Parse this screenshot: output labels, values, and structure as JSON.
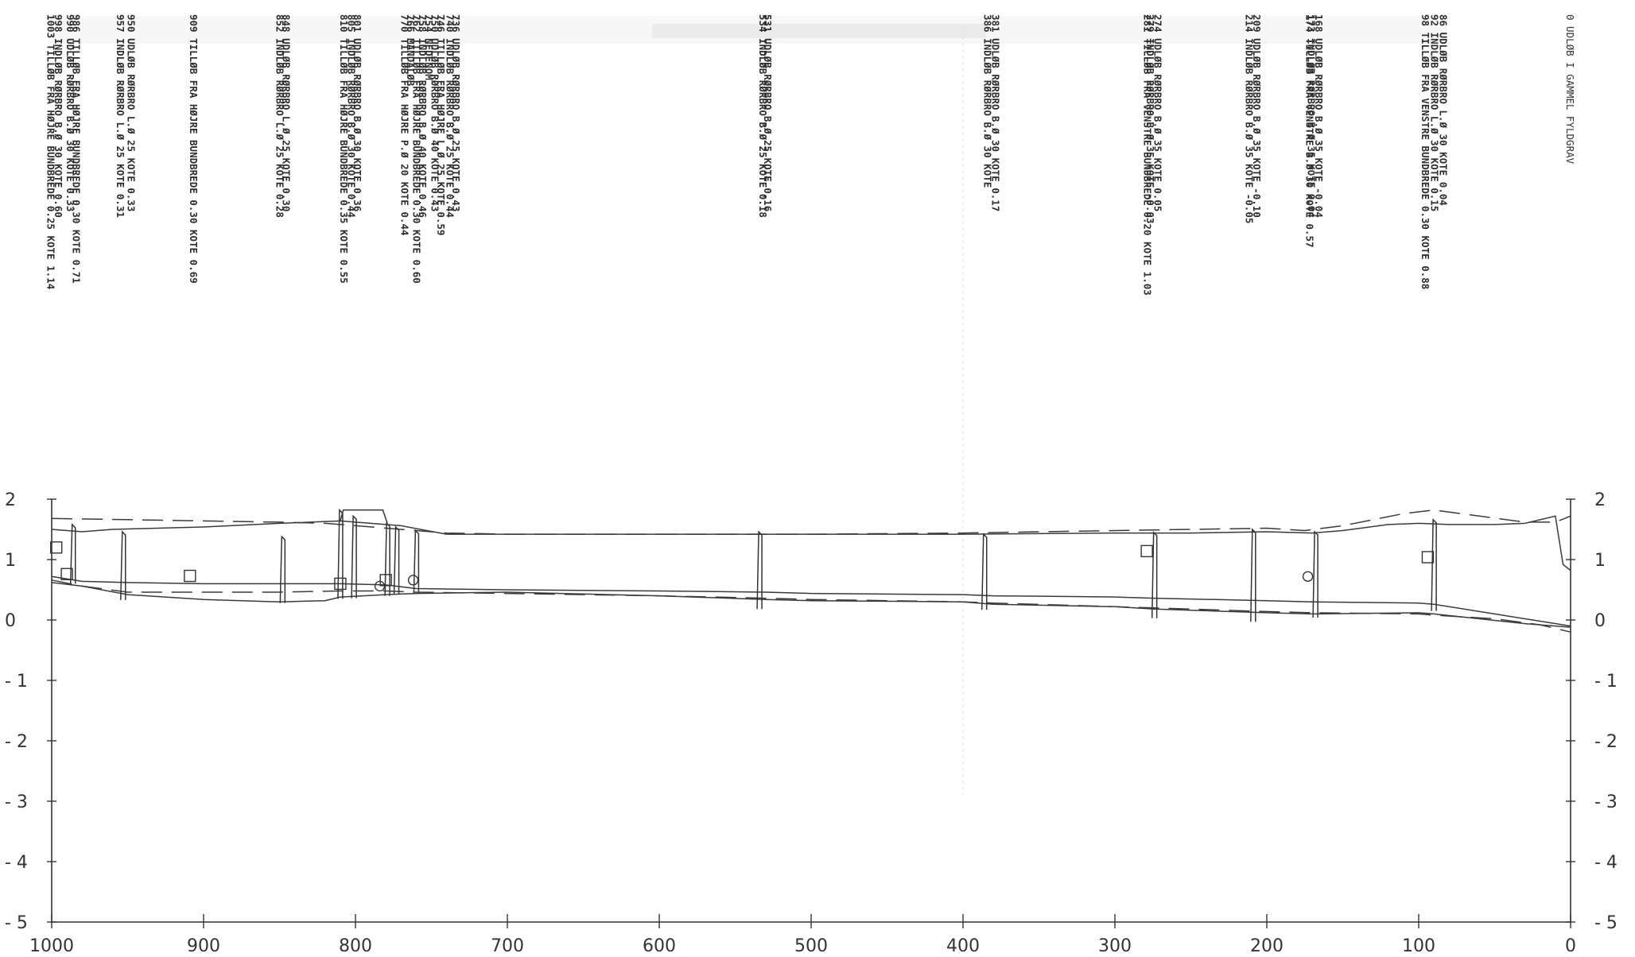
{
  "chart_data": {
    "type": "line",
    "x_ticks": [
      1000,
      900,
      800,
      700,
      600,
      500,
      400,
      300,
      200,
      100,
      0
    ],
    "y_ticks": [
      2,
      1,
      0,
      -1,
      -2,
      -3,
      -4,
      -5
    ],
    "xlim": [
      1000,
      0
    ],
    "ylim": [
      -5,
      2
    ],
    "series": [
      {
        "style": "dashed",
        "points": [
          [
            1000,
            1.68
          ],
          [
            950,
            1.66
          ],
          [
            900,
            1.64
          ],
          [
            850,
            1.62
          ],
          [
            820,
            1.6
          ],
          [
            800,
            1.56
          ],
          [
            760,
            1.48
          ],
          [
            740,
            1.44
          ],
          [
            700,
            1.42
          ],
          [
            600,
            1.42
          ],
          [
            500,
            1.42
          ],
          [
            400,
            1.44
          ],
          [
            300,
            1.48
          ],
          [
            250,
            1.5
          ],
          [
            200,
            1.52
          ],
          [
            175,
            1.48
          ],
          [
            150,
            1.56
          ],
          [
            110,
            1.76
          ],
          [
            90,
            1.82
          ],
          [
            60,
            1.72
          ],
          [
            30,
            1.62
          ],
          [
            10,
            1.62
          ],
          [
            0,
            1.72
          ]
        ]
      },
      {
        "style": "solid",
        "points": [
          [
            1000,
            1.5
          ],
          [
            980,
            1.46
          ],
          [
            960,
            1.5
          ],
          [
            900,
            1.54
          ],
          [
            850,
            1.6
          ],
          [
            810,
            1.64
          ],
          [
            790,
            1.6
          ],
          [
            770,
            1.56
          ],
          [
            740,
            1.42
          ],
          [
            700,
            1.42
          ],
          [
            600,
            1.42
          ],
          [
            500,
            1.42
          ],
          [
            400,
            1.42
          ],
          [
            300,
            1.44
          ],
          [
            250,
            1.44
          ],
          [
            200,
            1.46
          ],
          [
            170,
            1.44
          ],
          [
            150,
            1.48
          ],
          [
            120,
            1.58
          ],
          [
            100,
            1.6
          ],
          [
            80,
            1.58
          ],
          [
            50,
            1.58
          ],
          [
            30,
            1.6
          ],
          [
            10,
            1.72
          ],
          [
            5,
            0.92
          ],
          [
            0,
            0.82
          ]
        ]
      },
      {
        "style": "solid",
        "points": [
          [
            1000,
            0.72
          ],
          [
            980,
            0.64
          ],
          [
            950,
            0.62
          ],
          [
            900,
            0.6
          ],
          [
            850,
            0.6
          ],
          [
            810,
            0.6
          ],
          [
            780,
            0.58
          ],
          [
            760,
            0.52
          ],
          [
            700,
            0.5
          ],
          [
            600,
            0.48
          ],
          [
            530,
            0.46
          ],
          [
            500,
            0.44
          ],
          [
            400,
            0.42
          ],
          [
            380,
            0.4
          ],
          [
            300,
            0.38
          ],
          [
            274,
            0.36
          ],
          [
            200,
            0.32
          ],
          [
            170,
            0.3
          ],
          [
            100,
            0.28
          ],
          [
            90,
            0.26
          ],
          [
            50,
            0.1
          ],
          [
            20,
            -0.02
          ],
          [
            0,
            -0.1
          ]
        ]
      },
      {
        "style": "dashed",
        "points": [
          [
            1000,
            0.66
          ],
          [
            980,
            0.56
          ],
          [
            950,
            0.46
          ],
          [
            900,
            0.46
          ],
          [
            850,
            0.46
          ],
          [
            810,
            0.48
          ],
          [
            780,
            0.48
          ],
          [
            760,
            0.46
          ],
          [
            700,
            0.44
          ],
          [
            600,
            0.4
          ],
          [
            530,
            0.36
          ],
          [
            500,
            0.34
          ],
          [
            400,
            0.3
          ],
          [
            380,
            0.28
          ],
          [
            300,
            0.22
          ],
          [
            274,
            0.2
          ],
          [
            200,
            0.14
          ],
          [
            170,
            0.12
          ],
          [
            100,
            0.1
          ],
          [
            90,
            0.08
          ],
          [
            50,
            0.02
          ],
          [
            20,
            -0.08
          ],
          [
            0,
            -0.2
          ]
        ]
      },
      {
        "style": "solid",
        "points": [
          [
            1000,
            0.62
          ],
          [
            980,
            0.56
          ],
          [
            950,
            0.42
          ],
          [
            900,
            0.34
          ],
          [
            850,
            0.3
          ],
          [
            820,
            0.32
          ],
          [
            810,
            0.38
          ],
          [
            780,
            0.42
          ],
          [
            760,
            0.44
          ],
          [
            700,
            0.46
          ],
          [
            600,
            0.4
          ],
          [
            530,
            0.34
          ],
          [
            500,
            0.32
          ],
          [
            400,
            0.3
          ],
          [
            380,
            0.26
          ],
          [
            300,
            0.22
          ],
          [
            274,
            0.18
          ],
          [
            200,
            0.12
          ],
          [
            170,
            0.1
          ],
          [
            100,
            0.12
          ],
          [
            90,
            0.1
          ],
          [
            60,
            0.02
          ],
          [
            30,
            -0.06
          ],
          [
            0,
            -0.12
          ]
        ]
      }
    ],
    "structures": [
      {
        "x": 986,
        "bottom": 0.6,
        "top": 1.58
      },
      {
        "x": 953,
        "bottom": 0.33,
        "top": 1.46
      },
      {
        "x": 848,
        "bottom": 0.28,
        "top": 1.38
      },
      {
        "x": 810,
        "bottom": 0.35,
        "top": 1.82
      },
      {
        "x": 801,
        "bottom": 0.36,
        "top": 1.72
      },
      {
        "x": 779,
        "bottom": 0.4,
        "top": 1.6
      },
      {
        "x": 773,
        "bottom": 0.43,
        "top": 1.54
      },
      {
        "x": 760,
        "bottom": 0.44,
        "top": 1.48
      },
      {
        "x": 534,
        "bottom": 0.18,
        "top": 1.46
      },
      {
        "x": 386,
        "bottom": 0.17,
        "top": 1.42
      },
      {
        "x": 274,
        "bottom": 0.03,
        "top": 1.45
      },
      {
        "x": 209,
        "bottom": -0.03,
        "top": 1.5
      },
      {
        "x": 168,
        "bottom": 0.04,
        "top": 1.46
      },
      {
        "x": 90,
        "bottom": 0.15,
        "top": 1.66
      }
    ],
    "markers": [
      {
        "shape": "square",
        "x": 997,
        "y": 1.2
      },
      {
        "shape": "square",
        "x": 990,
        "y": 0.76
      },
      {
        "shape": "square",
        "x": 909,
        "y": 0.73
      },
      {
        "shape": "square",
        "x": 810,
        "y": 0.6
      },
      {
        "shape": "square",
        "x": 780,
        "y": 0.66
      },
      {
        "shape": "circle",
        "x": 784,
        "y": 0.56
      },
      {
        "shape": "circle",
        "x": 762,
        "y": 0.66
      },
      {
        "shape": "square",
        "x": 279,
        "y": 1.14
      },
      {
        "shape": "circle",
        "x": 173,
        "y": 0.72
      },
      {
        "shape": "square",
        "x": 94,
        "y": 1.04
      }
    ]
  },
  "header": "0 UDLØB I GAMMEL FYLDGRAV",
  "annotations": [
    {
      "x": 86,
      "text": "86 UDLØB RØRBRO L.Ø 30 KOTE 0.04"
    },
    {
      "x": 92,
      "text": "92 INDLØB RØRBRO L.Ø 30 KOTE 0.15"
    },
    {
      "x": 98,
      "text": "98 TILLØB FRA VENSTRE BUNDBREDE 0.30 KOTE 0.88"
    },
    {
      "x": 168,
      "text": "168 UDLØB RØRBRO B.Ø 35 KOTE -0.04"
    },
    {
      "x": 173,
      "text": "173 INDLØB RØRBRO B.Ø 35 KOTE 0.04"
    },
    {
      "x": 174,
      "text": "174 TILLØB FRA VENSTRE B.Ø 30 KOTE 0.57"
    },
    {
      "x": 209,
      "text": "209 UDLØB RØRBRO B.Ø 35 KOTE -0.10"
    },
    {
      "x": 214,
      "text": "214 INDLØB RØRBRO B.Ø 35 KOTE -0.05"
    },
    {
      "x": 274,
      "text": "274 UDLØB RØRBRO B.Ø 35 KOTE 0.05"
    },
    {
      "x": 279,
      "text": "279 INDLØB RØRBRO B.Ø 35 KOTE -0.03"
    },
    {
      "x": 281,
      "text": "281 TILLØB FRA VENSTRE BUNDBREDE 0.20 KOTE 1.03"
    },
    {
      "x": 381,
      "text": "381 UDLØB RØRBRO B.Ø 30 KOTE 0.17"
    },
    {
      "x": 386,
      "text": "386 INDLØB RØRBRO B.Ø 30 KOTE"
    },
    {
      "x": 531,
      "text": "531 UDLØB RØRBRO B.Ø 25 KOTE 0.16"
    },
    {
      "x": 534,
      "text": "534 INDLØB RØRBRO B.Ø 25 KOTE 0.18"
    },
    {
      "x": 736,
      "text": "736 UDLØB RØRBRO B.Ø 25 KOTE 0.43"
    },
    {
      "x": 740,
      "text": "740 INDLØB RØRBRO B.Ø 25 KOTE 0.44"
    },
    {
      "x": 746,
      "text": "746 TILLØB FRA HØJRE L.Ø 25 KOTE 0.59"
    },
    {
      "x": 750,
      "text": "750 UDLØB RØRBRO B.Ø 40 KOTE 0.43"
    },
    {
      "x": 754,
      "text": "754 NEDENOM"
    },
    {
      "x": 758,
      "text": "758 INDLØB RØRBRO B.Ø 40 KOTE 0.46"
    },
    {
      "x": 762,
      "text": "762 TILLØB FRA HØJRE BUNDBREDE 0.30 KOTE 0.60"
    },
    {
      "x": 766,
      "text": "766 MANDALØB"
    },
    {
      "x": 770,
      "text": "770 TILLØB FRA HØJRE P.Ø 20 KOTE 0.44"
    },
    {
      "x": 801,
      "text": "801 UDLØB RØRBRO B.Ø 30 KOTE 0.36"
    },
    {
      "x": 805,
      "text": "805 INDLØB RØRBRO B.Ø 30 KOTE 0.44"
    },
    {
      "x": 810,
      "text": "810 TILLØB FRA HØJRE BUNDBREDE 0.35 KOTE 0.55"
    },
    {
      "x": 848,
      "text": "848 UDLØB RØRBRO L.Ø 25 KOTE 0.30"
    },
    {
      "x": 852,
      "text": "852 INDLØB RØRBRO L.Ø 25 KOTE 0.28"
    },
    {
      "x": 909,
      "text": "909 TILLØB FRA HØJRE BUNDBREDE 0.30 KOTE 0.69"
    },
    {
      "x": 950,
      "text": "950 UDLØB RØRBRO L.Ø 25 KOTE 0.33"
    },
    {
      "x": 957,
      "text": "957 INDLØB RØRBRO L.Ø 25 KOTE 0.31"
    },
    {
      "x": 986,
      "text": "986 TILLØB FRA HØJRE BUNDBREDE 0.30 KOTE 0.71"
    },
    {
      "x": 990,
      "text": "990 UDLØB RØRBRO B.Ø 30 KOTE 0.33"
    },
    {
      "x": 998,
      "text": "998 INDLØB RØRBRO B.Ø 30 KOTE 0.60"
    },
    {
      "x": 1003,
      "text": "1003 TILLØB FRA HØJRE BUNDBREDE 0.25 KOTE 1.14"
    }
  ]
}
